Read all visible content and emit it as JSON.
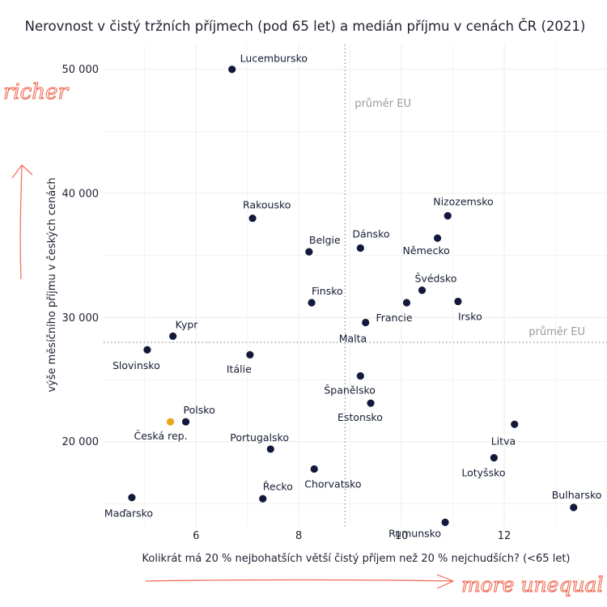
{
  "chart_data": {
    "type": "scatter",
    "title": "Nerovnost v čistý tržních příjmech (pod 65 let) a medián příjmu v cenách ČR (2021)",
    "xlabel": "Kolikrát má 20 % nejbohatších větší čistý příjem než 20 % nejchudších? (<65 let)",
    "ylabel": "výše měsíčního příjmu v českých cenách",
    "xlim": [
      4.2,
      14.0
    ],
    "ylim": [
      13200,
      52000
    ],
    "x_ticks": [
      {
        "value": 6,
        "label": "6"
      },
      {
        "value": 8,
        "label": "8"
      },
      {
        "value": 10,
        "label": "10"
      },
      {
        "value": 12,
        "label": "12"
      }
    ],
    "y_ticks": [
      {
        "value": 20000,
        "label": "20 000"
      },
      {
        "value": 30000,
        "label": "30 000"
      },
      {
        "value": 40000,
        "label": "40 000"
      },
      {
        "value": 50000,
        "label": "50 000"
      }
    ],
    "grid": true,
    "reference_lines": [
      {
        "axis": "x",
        "value": 8.9,
        "label": "průměr EU"
      },
      {
        "axis": "y",
        "value": 28000,
        "label": "průměr EU"
      }
    ],
    "highlight_color": "#e8a61a",
    "point_color": "#13193a",
    "points": [
      {
        "name": "Lucembursko",
        "x": 6.7,
        "y": 50000,
        "highlight": false
      },
      {
        "name": "Rakousko",
        "x": 7.1,
        "y": 38000,
        "highlight": false
      },
      {
        "name": "Nizozemsko",
        "x": 10.9,
        "y": 38200,
        "highlight": false
      },
      {
        "name": "Belgie",
        "x": 8.2,
        "y": 35300,
        "highlight": false
      },
      {
        "name": "Dánsko",
        "x": 9.2,
        "y": 35600,
        "highlight": false
      },
      {
        "name": "Německo",
        "x": 10.7,
        "y": 36400,
        "highlight": false
      },
      {
        "name": "Švédsko",
        "x": 10.4,
        "y": 32200,
        "highlight": false
      },
      {
        "name": "Finsko",
        "x": 8.25,
        "y": 31200,
        "highlight": false
      },
      {
        "name": "Francie",
        "x": 10.1,
        "y": 31200,
        "highlight": false
      },
      {
        "name": "Irsko",
        "x": 11.1,
        "y": 31300,
        "highlight": false
      },
      {
        "name": "Malta",
        "x": 9.3,
        "y": 29600,
        "highlight": false
      },
      {
        "name": "Kypr",
        "x": 5.55,
        "y": 28500,
        "highlight": false
      },
      {
        "name": "Slovinsko",
        "x": 5.05,
        "y": 27400,
        "highlight": false
      },
      {
        "name": "Itálie",
        "x": 7.05,
        "y": 27000,
        "highlight": false
      },
      {
        "name": "Španělsko",
        "x": 9.2,
        "y": 25300,
        "highlight": false
      },
      {
        "name": "Estonsko",
        "x": 9.4,
        "y": 23100,
        "highlight": false
      },
      {
        "name": "Polsko",
        "x": 5.8,
        "y": 21600,
        "highlight": false
      },
      {
        "name": "Česká rep.",
        "x": 5.5,
        "y": 21600,
        "highlight": true
      },
      {
        "name": "Litva",
        "x": 12.2,
        "y": 21400,
        "highlight": false
      },
      {
        "name": "Portugalsko",
        "x": 7.45,
        "y": 19400,
        "highlight": false
      },
      {
        "name": "Lotyšsko",
        "x": 11.8,
        "y": 18700,
        "highlight": false
      },
      {
        "name": "Chorvatsko",
        "x": 8.3,
        "y": 17800,
        "highlight": false
      },
      {
        "name": "Maďarsko",
        "x": 4.75,
        "y": 15500,
        "highlight": false
      },
      {
        "name": "Řecko",
        "x": 7.3,
        "y": 15400,
        "highlight": false
      },
      {
        "name": "Bulharsko",
        "x": 13.35,
        "y": 14700,
        "highlight": false
      },
      {
        "name": "Rumunsko",
        "x": 10.85,
        "y": 13500,
        "highlight": false
      }
    ]
  },
  "annotations": {
    "richer": "richer",
    "more_unequal": "more unequal"
  }
}
